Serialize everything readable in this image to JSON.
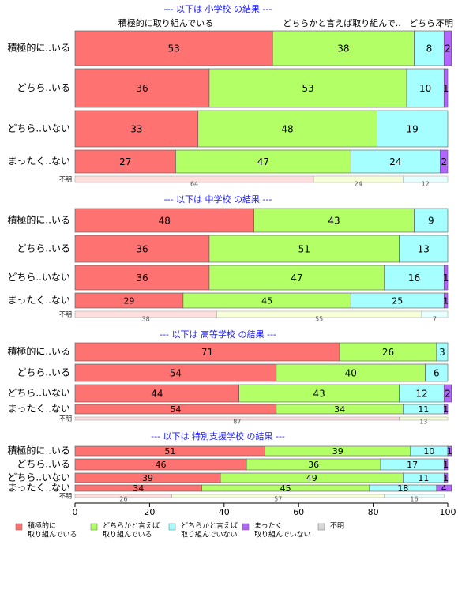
{
  "chart_data": {
    "type": "bar",
    "orientation": "horizontal",
    "stacked": true,
    "xlim": [
      0,
      100
    ],
    "x_ticks": [
      "0",
      "20",
      "40",
      "60",
      "80",
      "100"
    ],
    "colors": {
      "積極的に取り組んでいる": "#ff7272",
      "どちらかと言えば取り組んでいる": "#b3ff66",
      "どちらかと言えば取り組んでいない": "#a6ffff",
      "まったく取り組んでいない": "#b266ff",
      "不明": "#d9d9d9"
    },
    "top_labels": [
      "積極的に取り組んでいる",
      "どちらかと言えば取り組んで..",
      "どちら..",
      "不明"
    ],
    "groups": [
      {
        "title": "--- 以下は 小学校 の結果 ---",
        "rows": [
          {
            "label": "積極的に..いる",
            "values": [
              53,
              38,
              8,
              2
            ]
          },
          {
            "label": "どちら..いる",
            "values": [
              36,
              53,
              10,
              1
            ]
          },
          {
            "label": "どちら..いない",
            "values": [
              33,
              48,
              19,
              0
            ]
          },
          {
            "label": "まったく..ない",
            "values": [
              27,
              47,
              24,
              2
            ]
          }
        ],
        "unknown": {
          "label": "不明",
          "values": [
            64,
            24,
            12
          ]
        }
      },
      {
        "title": "--- 以下は 中学校 の結果 ---",
        "rows": [
          {
            "label": "積極的に..いる",
            "values": [
              48,
              43,
              9,
              0
            ]
          },
          {
            "label": "どちら..いる",
            "values": [
              36,
              51,
              13,
              0
            ]
          },
          {
            "label": "どちら..いない",
            "values": [
              36,
              47,
              16,
              1
            ]
          },
          {
            "label": "まったく..ない",
            "values": [
              29,
              45,
              25,
              1
            ]
          }
        ],
        "unknown": {
          "label": "不明",
          "values": [
            38,
            55,
            7
          ]
        }
      },
      {
        "title": "--- 以下は 高等学校 の結果 ---",
        "rows": [
          {
            "label": "積極的に..いる",
            "values": [
              71,
              26,
              3,
              0
            ]
          },
          {
            "label": "どちら..いる",
            "values": [
              54,
              40,
              6,
              0
            ]
          },
          {
            "label": "どちら..いない",
            "values": [
              44,
              43,
              12,
              2
            ]
          },
          {
            "label": "まったく..ない",
            "values": [
              54,
              34,
              11,
              1
            ]
          }
        ],
        "unknown": {
          "label": "不明",
          "values": [
            87,
            13
          ]
        }
      },
      {
        "title": "--- 以下は 特別支援学校 の結果 ---",
        "rows": [
          {
            "label": "積極的に..いる",
            "values": [
              51,
              39,
              10,
              1
            ]
          },
          {
            "label": "どちら..いる",
            "values": [
              46,
              36,
              17,
              1
            ]
          },
          {
            "label": "どちら..いない",
            "values": [
              39,
              49,
              11,
              1
            ]
          },
          {
            "label": "まったく..ない",
            "values": [
              34,
              45,
              18,
              4
            ]
          }
        ],
        "unknown": {
          "label": "不明",
          "values": [
            26,
            57,
            16
          ]
        }
      }
    ],
    "legend": [
      {
        "line1": "積極的に",
        "line2": "取り組んでいる"
      },
      {
        "line1": "どちらかと言えば",
        "line2": "取り組んでいる"
      },
      {
        "line1": "どちらかと言えば",
        "line2": "取り組んでいない"
      },
      {
        "line1": "まったく",
        "line2": "取り組んでいない"
      },
      {
        "line1": "不明",
        "line2": ""
      }
    ],
    "legend_placement": "bottom"
  }
}
